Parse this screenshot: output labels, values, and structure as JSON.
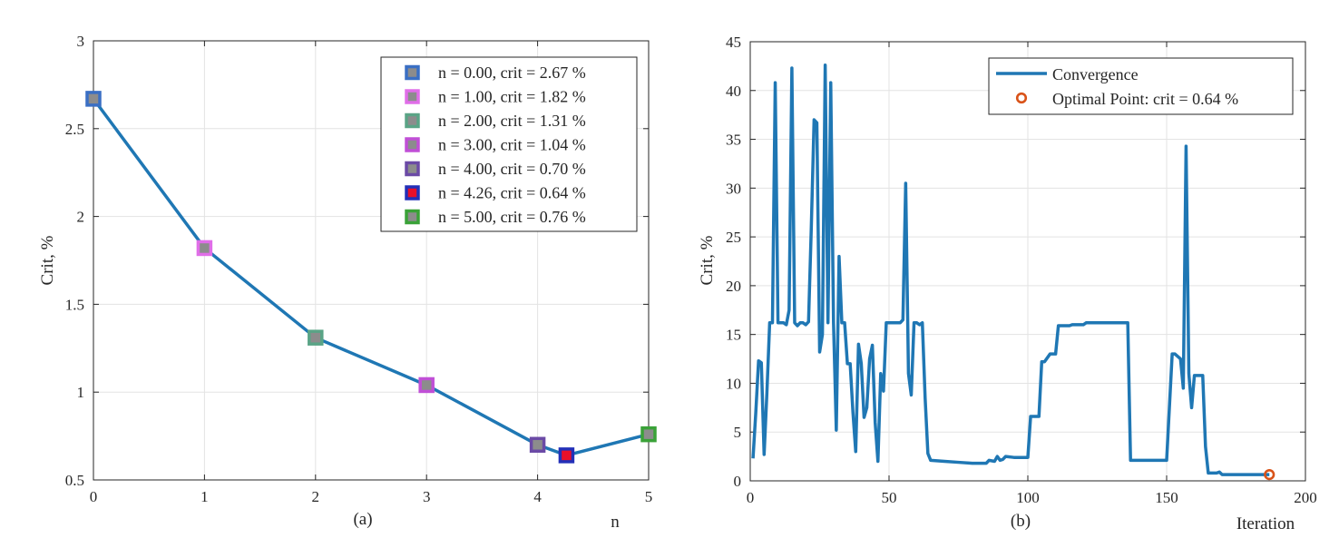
{
  "chart_data": [
    {
      "type": "line",
      "caption": "(a)",
      "xlabel": "n",
      "ylabel": "Crit, %",
      "xlim": [
        0,
        5
      ],
      "ylim": [
        0.5,
        3
      ],
      "xticks": [
        0,
        1,
        2,
        3,
        4,
        5
      ],
      "yticks": [
        0.5,
        1,
        1.5,
        2,
        2.5,
        3
      ],
      "ytick_labels": [
        "0.5",
        "1",
        "1.5",
        "2",
        "2.5",
        "3"
      ],
      "grid": true,
      "legend_position": "top-right",
      "line_color": "#1f77b4",
      "series": [
        {
          "x": [
            0,
            1,
            2,
            3,
            4,
            4.26,
            5
          ],
          "y": [
            2.67,
            1.82,
            1.31,
            1.04,
            0.7,
            0.64,
            0.76
          ]
        }
      ],
      "markers": [
        {
          "x": 0.0,
          "y": 2.67,
          "label": "n = 0.00, crit = 2.67 %",
          "edge": "#3a6fc4",
          "fill": "#8c8c8c"
        },
        {
          "x": 1.0,
          "y": 1.82,
          "label": "n = 1.00, crit = 1.82 %",
          "edge": "#e06ee8",
          "fill": "#8c8c8c"
        },
        {
          "x": 2.0,
          "y": 1.31,
          "label": "n = 2.00, crit = 1.31 %",
          "edge": "#5aa486",
          "fill": "#8c8c8c"
        },
        {
          "x": 3.0,
          "y": 1.04,
          "label": "n = 3.00, crit = 1.04 %",
          "edge": "#c04fd6",
          "fill": "#8c8c8c"
        },
        {
          "x": 4.0,
          "y": 0.7,
          "label": "n = 4.00, crit = 0.70 %",
          "edge": "#6b4aa6",
          "fill": "#8c8c8c"
        },
        {
          "x": 4.26,
          "y": 0.64,
          "label": "n = 4.26, crit = 0.64 %",
          "edge": "#2330b8",
          "fill": "#e8102a"
        },
        {
          "x": 5.0,
          "y": 0.76,
          "label": "n = 5.00, crit = 0.76 %",
          "edge": "#3aa238",
          "fill": "#8c8c8c"
        }
      ]
    },
    {
      "type": "line",
      "caption": "(b)",
      "xlabel": "Iteration",
      "ylabel": "Crit, %",
      "xlim": [
        0,
        200
      ],
      "ylim": [
        0,
        45
      ],
      "xticks": [
        0,
        50,
        100,
        150,
        200
      ],
      "yticks": [
        0,
        5,
        10,
        15,
        20,
        25,
        30,
        35,
        40,
        45
      ],
      "grid": true,
      "legend_position": "top-right",
      "series": [
        {
          "name": "Convergence",
          "color": "#1f77b4",
          "x": [
            1,
            2,
            3,
            4,
            5,
            6,
            7,
            8,
            9,
            10,
            11,
            12,
            13,
            14,
            15,
            16,
            17,
            18,
            19,
            20,
            21,
            22,
            23,
            24,
            25,
            26,
            27,
            28,
            29,
            30,
            31,
            32,
            33,
            34,
            35,
            36,
            37,
            38,
            39,
            40,
            41,
            42,
            43,
            44,
            45,
            46,
            47,
            48,
            49,
            50,
            51,
            52,
            53,
            54,
            55,
            56,
            57,
            58,
            59,
            60,
            61,
            62,
            63,
            64,
            65,
            70,
            75,
            80,
            85,
            86,
            88,
            89,
            90,
            91,
            92,
            95,
            96,
            100,
            101,
            104,
            105,
            106,
            108,
            110,
            111,
            115,
            116,
            120,
            121,
            125,
            130,
            136,
            137,
            140,
            145,
            150,
            152,
            153,
            155,
            156,
            157,
            158,
            159,
            160,
            161,
            163,
            164,
            165,
            168,
            169,
            170,
            180,
            186,
            187
          ],
          "y": [
            2.3,
            7.0,
            12.3,
            12.1,
            2.7,
            9.0,
            16.2,
            16.2,
            40.8,
            16.2,
            16.2,
            16.2,
            16.0,
            17.5,
            42.3,
            16.2,
            15.9,
            16.2,
            16.2,
            16.0,
            16.3,
            26.0,
            37.0,
            36.7,
            13.2,
            15.0,
            42.6,
            16.2,
            40.8,
            16.2,
            5.2,
            23.0,
            16.2,
            16.2,
            12.0,
            12.0,
            7.0,
            3.0,
            14.0,
            12.0,
            6.5,
            7.5,
            12.5,
            13.9,
            6.0,
            2.0,
            11.0,
            9.2,
            16.2,
            16.2,
            16.2,
            16.2,
            16.2,
            16.2,
            16.5,
            30.5,
            11.0,
            8.8,
            16.2,
            16.2,
            16.0,
            16.2,
            8.5,
            2.8,
            2.1,
            2.0,
            1.9,
            1.8,
            1.8,
            2.1,
            2.0,
            2.5,
            2.1,
            2.2,
            2.5,
            2.4,
            2.4,
            2.4,
            6.6,
            6.6,
            12.2,
            12.2,
            13.0,
            13.0,
            15.9,
            15.9,
            16.0,
            16.0,
            16.2,
            16.2,
            16.2,
            16.2,
            2.1,
            2.1,
            2.1,
            2.1,
            13.0,
            13.0,
            12.5,
            9.5,
            34.3,
            11.0,
            7.5,
            10.8,
            10.8,
            10.8,
            3.5,
            0.8,
            0.8,
            0.9,
            0.64,
            0.64,
            0.64,
            0.64
          ]
        },
        {
          "name": "Optimal Point: crit = 0.64 %",
          "color": "#d95319",
          "marker": "circle",
          "x": [
            187
          ],
          "y": [
            0.64
          ]
        }
      ]
    }
  ]
}
